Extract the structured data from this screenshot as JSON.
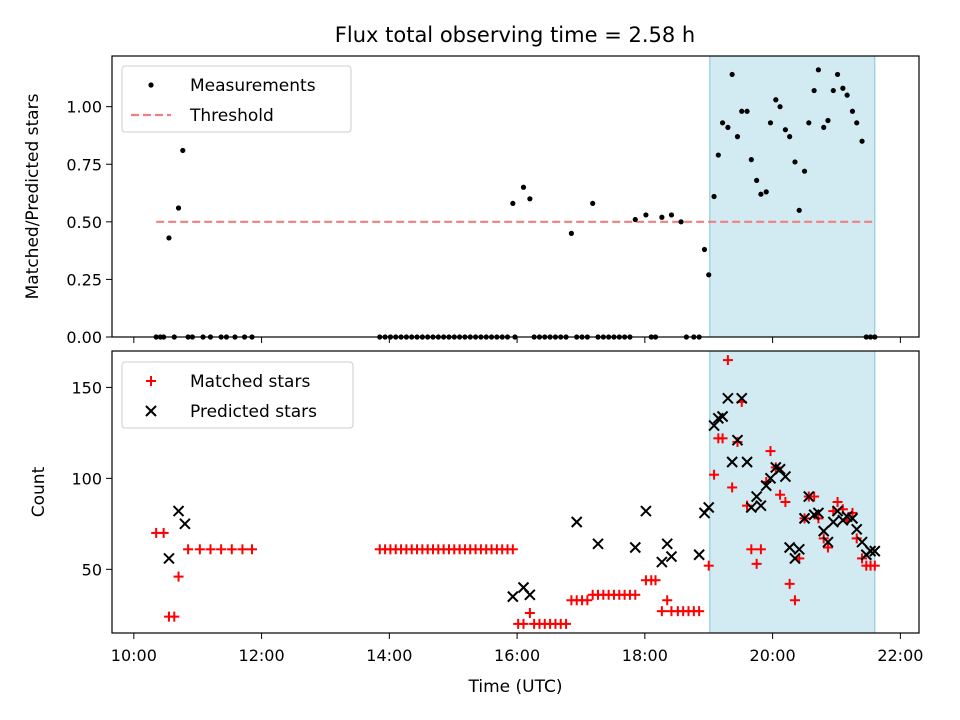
{
  "chart_data": [
    {
      "type": "scatter",
      "title": "Flux total observing time = 2.58 h",
      "xlabel": "",
      "ylabel": "Matched/Predicted stars",
      "xlim": [
        "10:00",
        "22:00"
      ],
      "ylim": [
        0,
        1.22
      ],
      "yticks": [
        "0.00",
        "0.25",
        "0.50",
        "0.75",
        "1.00"
      ],
      "grid": false,
      "legend": "top-left",
      "shaded_region": {
        "x": [
          "19:01",
          "21:36"
        ],
        "color": "#add8e6"
      },
      "series": [
        {
          "name": "Measurements",
          "marker": "dot",
          "color": "#000000",
          "x": [
            "10:21",
            "10:25",
            "10:28",
            "10:33",
            "10:38",
            "10:42",
            "10:46",
            "10:51",
            "10:55",
            "11:05",
            "11:12",
            "11:22",
            "11:27",
            "11:35",
            "11:44",
            "11:51",
            "13:51",
            "13:56",
            "14:01",
            "14:06",
            "14:11",
            "14:16",
            "14:21",
            "14:26",
            "14:31",
            "14:36",
            "14:41",
            "14:46",
            "14:51",
            "14:56",
            "15:01",
            "15:06",
            "15:11",
            "15:16",
            "15:21",
            "15:26",
            "15:31",
            "15:36",
            "15:41",
            "15:46",
            "15:51",
            "15:56",
            "15:58",
            "16:06",
            "16:12",
            "16:16",
            "16:21",
            "16:26",
            "16:31",
            "16:36",
            "16:41",
            "16:46",
            "16:51",
            "16:56",
            "17:01",
            "17:06",
            "17:11",
            "17:16",
            "17:21",
            "17:26",
            "17:31",
            "17:36",
            "17:41",
            "17:46",
            "17:51",
            "18:01",
            "18:06",
            "18:10",
            "18:16",
            "18:25",
            "18:34",
            "18:39",
            "18:46",
            "18:51",
            "18:56",
            "19:00",
            "19:05",
            "19:09",
            "19:13",
            "19:18",
            "19:22",
            "19:27",
            "19:31",
            "19:36",
            "19:40",
            "19:45",
            "19:49",
            "19:54",
            "19:58",
            "20:03",
            "20:07",
            "20:12",
            "20:16",
            "20:21",
            "20:25",
            "20:30",
            "20:34",
            "20:39",
            "20:43",
            "20:48",
            "20:52",
            "20:57",
            "21:01",
            "21:06",
            "21:10",
            "21:15",
            "21:19",
            "21:24",
            "21:28",
            "21:32",
            "21:36"
          ],
          "y": [
            0.0,
            0.0,
            0.0,
            0.43,
            0.0,
            0.56,
            0.81,
            0.0,
            0.0,
            0.0,
            0.0,
            0.0,
            0.0,
            0.0,
            0.0,
            0.0,
            0.0,
            0.0,
            0.0,
            0.0,
            0.0,
            0.0,
            0.0,
            0.0,
            0.0,
            0.0,
            0.0,
            0.0,
            0.0,
            0.0,
            0.0,
            0.0,
            0.0,
            0.0,
            0.0,
            0.0,
            0.0,
            0.0,
            0.0,
            0.0,
            0.0,
            0.58,
            0.0,
            0.65,
            0.6,
            0.0,
            0.0,
            0.0,
            0.0,
            0.0,
            0.0,
            0.0,
            0.45,
            0.0,
            0.0,
            0.0,
            0.58,
            0.0,
            0.0,
            0.0,
            0.0,
            0.0,
            0.0,
            0.0,
            0.51,
            0.53,
            0.0,
            0.0,
            0.52,
            0.53,
            0.5,
            0.0,
            0.0,
            0.0,
            0.38,
            0.27,
            0.61,
            0.79,
            0.93,
            0.91,
            1.14,
            0.87,
            0.98,
            0.98,
            0.77,
            0.68,
            0.62,
            0.63,
            0.93,
            1.03,
            1.0,
            0.9,
            0.87,
            0.76,
            0.55,
            0.72,
            0.93,
            1.07,
            1.16,
            0.91,
            0.94,
            1.07,
            1.14,
            1.08,
            1.05,
            0.98,
            0.93,
            0.85,
            0.0,
            0.0,
            0.0
          ]
        },
        {
          "name": "Threshold",
          "marker": "dashed-line",
          "color": "#f08080",
          "x": [
            "10:21",
            "21:36"
          ],
          "y": [
            0.5,
            0.5
          ]
        }
      ]
    },
    {
      "type": "scatter",
      "title": "",
      "xlabel": "Time (UTC)",
      "ylabel": "Count",
      "xlim": [
        "10:00",
        "22:00"
      ],
      "ylim": [
        15,
        170
      ],
      "xticks": [
        "10:00",
        "12:00",
        "14:00",
        "16:00",
        "18:00",
        "20:00",
        "22:00"
      ],
      "yticks": [
        "50",
        "100",
        "150"
      ],
      "grid": false,
      "legend": "top-left",
      "shaded_region": {
        "x": [
          "19:01",
          "21:36"
        ],
        "color": "#add8e6"
      },
      "series": [
        {
          "name": "Matched stars",
          "marker": "plus",
          "color": "#ff0000",
          "x": [
            "10:21",
            "10:28",
            "10:33",
            "10:38",
            "10:42",
            "10:51",
            "11:02",
            "11:12",
            "11:22",
            "11:32",
            "11:42",
            "11:51",
            "13:51",
            "13:56",
            "14:01",
            "14:06",
            "14:11",
            "14:16",
            "14:21",
            "14:26",
            "14:31",
            "14:36",
            "14:41",
            "14:46",
            "14:51",
            "14:56",
            "15:01",
            "15:06",
            "15:11",
            "15:16",
            "15:21",
            "15:26",
            "15:31",
            "15:36",
            "15:41",
            "15:46",
            "15:51",
            "15:56",
            "16:01",
            "16:06",
            "16:12",
            "16:16",
            "16:21",
            "16:26",
            "16:31",
            "16:36",
            "16:41",
            "16:46",
            "16:51",
            "16:56",
            "17:01",
            "17:06",
            "17:11",
            "17:16",
            "17:21",
            "17:26",
            "17:31",
            "17:36",
            "17:41",
            "17:46",
            "17:51",
            "18:01",
            "18:06",
            "18:10",
            "18:16",
            "18:21",
            "18:25",
            "18:31",
            "18:36",
            "18:41",
            "18:46",
            "18:51",
            "19:00",
            "19:05",
            "19:09",
            "19:13",
            "19:18",
            "19:22",
            "19:27",
            "19:31",
            "19:36",
            "19:40",
            "19:45",
            "19:49",
            "19:54",
            "19:58",
            "20:03",
            "20:07",
            "20:12",
            "20:16",
            "20:21",
            "20:25",
            "20:30",
            "20:34",
            "20:39",
            "20:43",
            "20:48",
            "20:52",
            "20:57",
            "21:01",
            "21:06",
            "21:10",
            "21:15",
            "21:19",
            "21:24",
            "21:28",
            "21:32",
            "21:36"
          ],
          "y": [
            70,
            70,
            24,
            24,
            46,
            61,
            61,
            61,
            61,
            61,
            61,
            61,
            61,
            61,
            61,
            61,
            61,
            61,
            61,
            61,
            61,
            61,
            61,
            61,
            61,
            61,
            61,
            61,
            61,
            61,
            61,
            61,
            61,
            61,
            61,
            61,
            61,
            61,
            20,
            20,
            26,
            20,
            20,
            20,
            20,
            20,
            20,
            20,
            33,
            33,
            33,
            33,
            36,
            36,
            36,
            36,
            36,
            36,
            36,
            36,
            36,
            44,
            44,
            44,
            27,
            33,
            27,
            27,
            27,
            27,
            27,
            27,
            52,
            102,
            122,
            122,
            165,
            95,
            120,
            142,
            85,
            61,
            53,
            61,
            98,
            115,
            106,
            91,
            87,
            42,
            33,
            56,
            78,
            90,
            90,
            78,
            67,
            62,
            82,
            87,
            83,
            77,
            81,
            67,
            56,
            52,
            52,
            52
          ]
        },
        {
          "name": "Predicted stars",
          "marker": "x",
          "color": "#000000",
          "x": [
            "10:33",
            "10:42",
            "10:48",
            "15:56",
            "16:06",
            "16:12",
            "16:56",
            "17:16",
            "17:51",
            "18:01",
            "18:16",
            "18:21",
            "18:25",
            "18:51",
            "18:56",
            "19:00",
            "19:05",
            "19:09",
            "19:13",
            "19:18",
            "19:22",
            "19:27",
            "19:31",
            "19:36",
            "19:40",
            "19:45",
            "19:49",
            "19:54",
            "19:58",
            "20:03",
            "20:07",
            "20:12",
            "20:16",
            "20:21",
            "20:25",
            "20:30",
            "20:34",
            "20:39",
            "20:43",
            "20:48",
            "20:52",
            "20:57",
            "21:01",
            "21:06",
            "21:10",
            "21:15",
            "21:19",
            "21:24",
            "21:28",
            "21:32",
            "21:36"
          ],
          "y": [
            56,
            82,
            75,
            35,
            40,
            36,
            76,
            64,
            62,
            82,
            54,
            64,
            57,
            58,
            81,
            84,
            129,
            133,
            134,
            144,
            109,
            121,
            144,
            109,
            84,
            90,
            85,
            96,
            100,
            106,
            105,
            101,
            62,
            56,
            61,
            78,
            90,
            80,
            81,
            71,
            65,
            76,
            82,
            77,
            79,
            78,
            72,
            65,
            58,
            60,
            60
          ]
        }
      ]
    }
  ]
}
